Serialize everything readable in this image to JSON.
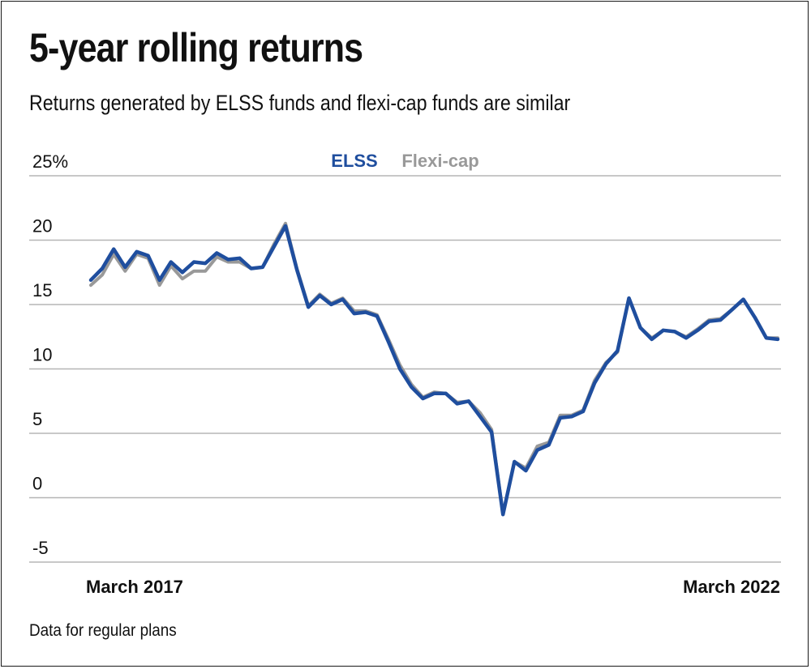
{
  "chart_data": {
    "type": "line",
    "title": "5-year rolling returns",
    "subtitle": "Returns generated by ELSS funds and flexi-cap funds are similar",
    "note": "Data for regular plans",
    "ylim": [
      -5,
      25
    ],
    "y_ticks": [
      -5,
      0,
      5,
      10,
      15,
      20,
      25
    ],
    "y_tick_labels": [
      "-5",
      "0",
      "5",
      "10",
      "15",
      "20",
      "25%"
    ],
    "x_tick_labels": [
      {
        "label": "March 2017",
        "index": 0
      },
      {
        "label": "March 2022",
        "index": 60
      }
    ],
    "grid": true,
    "legend_position": "top-center",
    "series": [
      {
        "name": "Flexi-cap",
        "color": "#999999",
        "values": [
          16.5,
          17.3,
          18.9,
          17.6,
          18.9,
          18.6,
          16.5,
          18.0,
          17.0,
          17.6,
          17.6,
          18.7,
          18.3,
          18.3,
          17.8,
          17.9,
          19.7,
          21.3,
          17.8,
          14.9,
          15.8,
          15.1,
          15.5,
          14.5,
          14.5,
          14.2,
          12.3,
          10.3,
          8.8,
          7.8,
          8.2,
          8.1,
          7.4,
          7.5,
          6.6,
          5.3,
          -1.3,
          2.8,
          2.3,
          4.0,
          4.3,
          6.4,
          6.4,
          6.8,
          9.1,
          10.5,
          11.3,
          15.5,
          13.2,
          12.4,
          13.0,
          12.9,
          12.5,
          13.1,
          13.8,
          13.9,
          14.6,
          15.4,
          14.0,
          12.4,
          12.4
        ]
      },
      {
        "name": "ELSS",
        "color": "#1f4e9e",
        "values": [
          16.9,
          17.8,
          19.3,
          17.9,
          19.1,
          18.8,
          16.9,
          18.3,
          17.5,
          18.3,
          18.2,
          19.0,
          18.5,
          18.6,
          17.8,
          17.9,
          19.5,
          21.1,
          17.7,
          14.8,
          15.7,
          15.0,
          15.4,
          14.3,
          14.4,
          14.1,
          12.1,
          10.0,
          8.6,
          7.7,
          8.1,
          8.1,
          7.3,
          7.5,
          6.3,
          5.1,
          -1.3,
          2.8,
          2.1,
          3.7,
          4.1,
          6.2,
          6.3,
          6.7,
          8.9,
          10.4,
          11.4,
          15.5,
          13.2,
          12.3,
          13.0,
          12.9,
          12.4,
          13.0,
          13.7,
          13.8,
          14.6,
          15.4,
          14.0,
          12.4,
          12.3
        ]
      }
    ]
  }
}
